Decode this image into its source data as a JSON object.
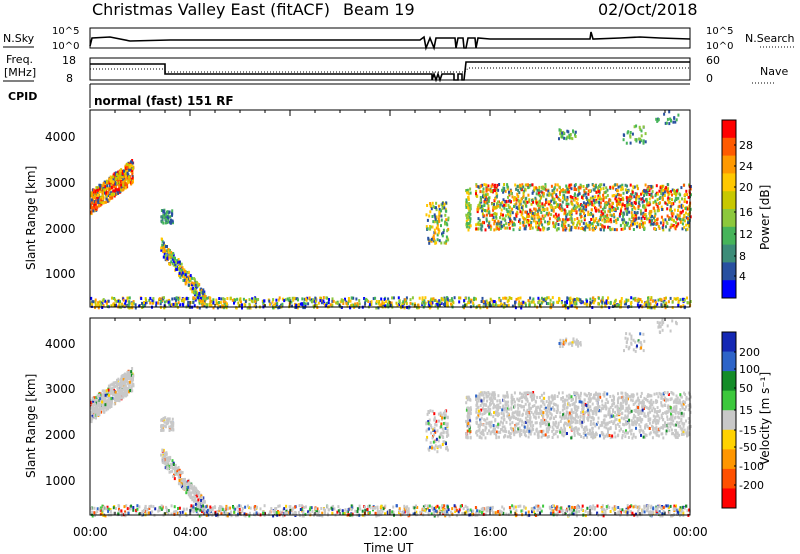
{
  "header": {
    "title": "Christmas Valley East (fitACF)",
    "beam": "Beam 19",
    "date": "02/Oct/2018"
  },
  "noise_panel": {
    "left_label": "N.Sky",
    "left_ticks": [
      "10^5",
      "10^0"
    ],
    "right_label": "N.Search",
    "right_ticks": [
      "10^5",
      "10^0"
    ]
  },
  "freq_panel": {
    "left_label_1": "Freq.",
    "left_label_2": "[MHz]",
    "left_ticks": [
      "18",
      "8"
    ],
    "right_label": "Nave",
    "right_ticks": [
      "60",
      "0"
    ]
  },
  "cpid_panel": {
    "label": "CPID",
    "text": "normal (fast) 151 RF"
  },
  "x_axis": {
    "label": "Time UT",
    "ticks": [
      "00:00",
      "04:00",
      "08:00",
      "12:00",
      "16:00",
      "20:00",
      "00:00"
    ]
  },
  "chart_data": [
    {
      "type": "heatmap",
      "name": "power-panel",
      "ylabel": "Slant Range [km]",
      "yticks": [
        "4000",
        "3000",
        "2000",
        "1000"
      ],
      "ylim": [
        180,
        4500
      ],
      "xlim": [
        0,
        24
      ],
      "colorbar": {
        "label": "Power [dB]",
        "ticks": [
          "28",
          "24",
          "20",
          "16",
          "12",
          "8",
          "4"
        ],
        "colors": [
          "#ff0000",
          "#ff5a00",
          "#ff9900",
          "#ffc800",
          "#c8c800",
          "#8cc83c",
          "#46b45a",
          "#3c8c78",
          "#2850a0",
          "#0000ff"
        ]
      }
    },
    {
      "type": "heatmap",
      "name": "velocity-panel",
      "ylabel": "Slant Range [km]",
      "yticks": [
        "4000",
        "3000",
        "2000",
        "1000"
      ],
      "ylim": [
        180,
        4500
      ],
      "xlim": [
        0,
        24
      ],
      "colorbar": {
        "label": "Velocity [m s⁻¹]",
        "ticks": [
          "200",
          "100",
          "50",
          "15",
          "-15",
          "-50",
          "-100",
          "-200"
        ],
        "colors": [
          "#1428b4",
          "#2d64c8",
          "#148c28",
          "#3cc83c",
          "#c8c8c8",
          "#ffd200",
          "#ff9600",
          "#ff5000",
          "#ff0000"
        ]
      }
    }
  ]
}
